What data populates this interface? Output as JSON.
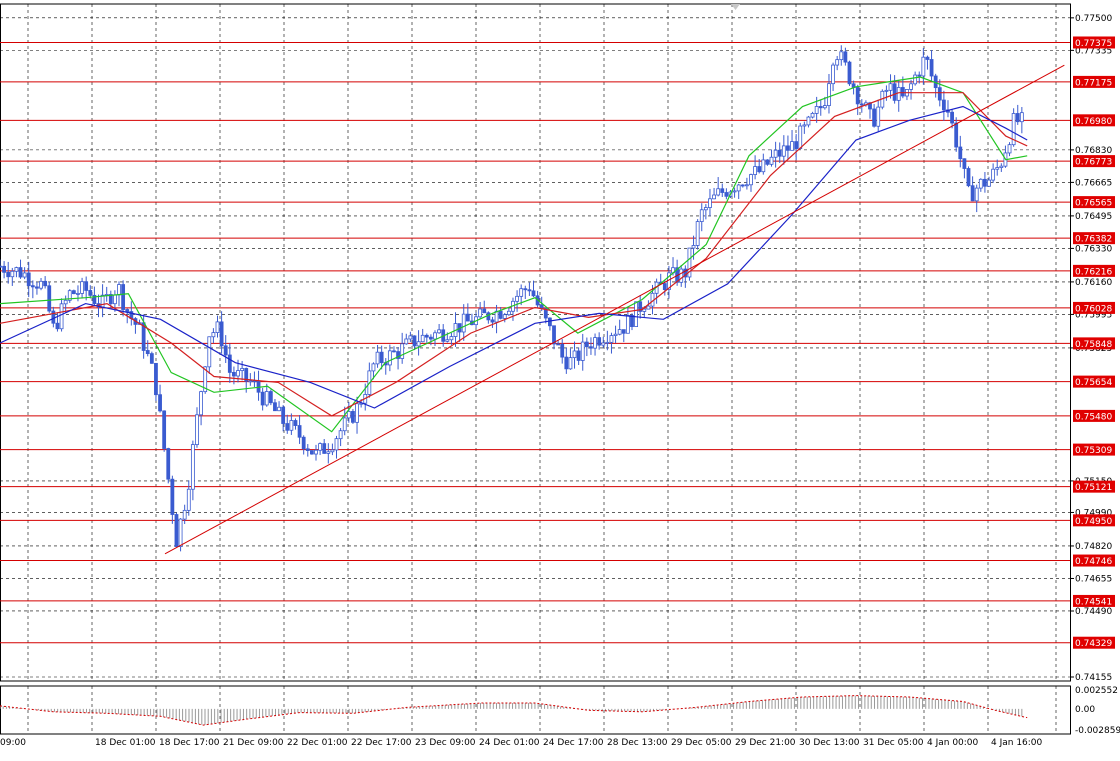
{
  "colors": {
    "background": "#ffffff",
    "frame": "#000000",
    "grid": "#000000",
    "candle": "#3a5bd0",
    "level_line": "#d40000",
    "level_label_bg": "#e00000",
    "level_label_text": "#ffffff",
    "ma_fast": "#22c522",
    "ma_mid": "#d42020",
    "ma_slow": "#1a22c8",
    "trend_line": "#d40000",
    "osc_histogram": "#9a9a9a",
    "osc_signal": "#d40000"
  },
  "chart_data": [
    {
      "type": "candlestick",
      "title": "",
      "price_range": [
        0.74155,
        0.7755
      ],
      "y_axis_ticks": [
        "0.77500",
        "0.77335",
        "0.76830",
        "0.76665",
        "0.76495",
        "0.76330",
        "0.76160",
        "0.75995",
        "0.75825",
        "0.75150",
        "0.74990",
        "0.74820",
        "0.74655",
        "0.74490",
        "0.74155"
      ],
      "x_axis_labels": [
        "09:00",
        "18 Dec 01:00",
        "18 Dec 17:00",
        "21 Dec 09:00",
        "22 Dec 01:00",
        "22 Dec 17:00",
        "23 Dec 09:00",
        "24 Dec 01:00",
        "24 Dec 17:00",
        "28 Dec 13:00",
        "29 Dec 05:00",
        "29 Dec 21:00",
        "30 Dec 13:00",
        "31 Dec 05:00",
        "4 Jan 00:00",
        "4 Jan 16:00"
      ],
      "levels": [
        "0.77375",
        "0.77175",
        "0.76980",
        "0.76773",
        "0.76565",
        "0.76382",
        "0.76216",
        "0.76028",
        "0.75848",
        "0.75654",
        "0.75480",
        "0.75309",
        "0.75121",
        "0.74950",
        "0.74746",
        "0.74541",
        "0.74329"
      ],
      "trend_line": [
        [
          0,
          0.7478
        ],
        [
          0.948,
          0.7726
        ]
      ],
      "close_path": [
        [
          0,
          0.7624
        ],
        [
          0.02,
          0.7621
        ],
        [
          0.04,
          0.7614
        ],
        [
          0.05,
          0.7592
        ],
        [
          0.065,
          0.761
        ],
        [
          0.08,
          0.7612
        ],
        [
          0.095,
          0.7604
        ],
        [
          0.11,
          0.7614
        ],
        [
          0.12,
          0.76
        ],
        [
          0.13,
          0.7592
        ],
        [
          0.145,
          0.7566
        ],
        [
          0.155,
          0.7525
        ],
        [
          0.165,
          0.7485
        ],
        [
          0.175,
          0.751
        ],
        [
          0.185,
          0.755
        ],
        [
          0.195,
          0.759
        ],
        [
          0.205,
          0.7592
        ],
        [
          0.215,
          0.757
        ],
        [
          0.235,
          0.7565
        ],
        [
          0.25,
          0.7555
        ],
        [
          0.265,
          0.7545
        ],
        [
          0.28,
          0.7538
        ],
        [
          0.295,
          0.7528
        ],
        [
          0.31,
          0.7535
        ],
        [
          0.325,
          0.7545
        ],
        [
          0.335,
          0.7553
        ],
        [
          0.35,
          0.7575
        ],
        [
          0.37,
          0.758
        ],
        [
          0.39,
          0.7587
        ],
        [
          0.41,
          0.759
        ],
        [
          0.43,
          0.7594
        ],
        [
          0.45,
          0.7598
        ],
        [
          0.47,
          0.7602
        ],
        [
          0.485,
          0.761
        ],
        [
          0.495,
          0.7614
        ],
        [
          0.505,
          0.7601
        ],
        [
          0.515,
          0.759
        ],
        [
          0.525,
          0.7578
        ],
        [
          0.535,
          0.7575
        ],
        [
          0.55,
          0.7585
        ],
        [
          0.57,
          0.7591
        ],
        [
          0.585,
          0.7594
        ],
        [
          0.6,
          0.7605
        ],
        [
          0.615,
          0.7612
        ],
        [
          0.625,
          0.7618
        ],
        [
          0.64,
          0.762
        ],
        [
          0.655,
          0.765
        ],
        [
          0.67,
          0.766
        ],
        [
          0.685,
          0.7665
        ],
        [
          0.7,
          0.767
        ],
        [
          0.71,
          0.7672
        ],
        [
          0.725,
          0.768
        ],
        [
          0.74,
          0.7685
        ],
        [
          0.755,
          0.7695
        ],
        [
          0.77,
          0.7707
        ],
        [
          0.78,
          0.7735
        ],
        [
          0.79,
          0.7725
        ],
        [
          0.8,
          0.7713
        ],
        [
          0.815,
          0.7697
        ],
        [
          0.83,
          0.7715
        ],
        [
          0.845,
          0.7708
        ],
        [
          0.855,
          0.772
        ],
        [
          0.865,
          0.773
        ],
        [
          0.875,
          0.7713
        ],
        [
          0.885,
          0.7705
        ],
        [
          0.895,
          0.7685
        ],
        [
          0.905,
          0.766
        ],
        [
          0.915,
          0.7665
        ],
        [
          0.925,
          0.7668
        ],
        [
          0.935,
          0.7676
        ],
        [
          0.948,
          0.7698
        ],
        [
          0.955,
          0.7697
        ]
      ],
      "moving_averages": {
        "fast": [
          [
            0,
            0.7605
          ],
          [
            0.08,
            0.7608
          ],
          [
            0.12,
            0.761
          ],
          [
            0.16,
            0.757
          ],
          [
            0.2,
            0.756
          ],
          [
            0.25,
            0.7563
          ],
          [
            0.31,
            0.754
          ],
          [
            0.36,
            0.7575
          ],
          [
            0.4,
            0.7585
          ],
          [
            0.46,
            0.76
          ],
          [
            0.5,
            0.7608
          ],
          [
            0.54,
            0.759
          ],
          [
            0.6,
            0.7607
          ],
          [
            0.66,
            0.7635
          ],
          [
            0.7,
            0.768
          ],
          [
            0.75,
            0.7705
          ],
          [
            0.8,
            0.7715
          ],
          [
            0.86,
            0.772
          ],
          [
            0.9,
            0.7712
          ],
          [
            0.94,
            0.7678
          ],
          [
            0.96,
            0.768
          ]
        ],
        "mid": [
          [
            0,
            0.7595
          ],
          [
            0.1,
            0.7605
          ],
          [
            0.16,
            0.7585
          ],
          [
            0.2,
            0.7568
          ],
          [
            0.26,
            0.7565
          ],
          [
            0.31,
            0.7548
          ],
          [
            0.37,
            0.7565
          ],
          [
            0.44,
            0.759
          ],
          [
            0.5,
            0.7603
          ],
          [
            0.55,
            0.7598
          ],
          [
            0.6,
            0.7602
          ],
          [
            0.66,
            0.7628
          ],
          [
            0.72,
            0.767
          ],
          [
            0.78,
            0.77
          ],
          [
            0.84,
            0.7712
          ],
          [
            0.9,
            0.7712
          ],
          [
            0.94,
            0.769
          ],
          [
            0.96,
            0.7685
          ]
        ],
        "slow": [
          [
            0,
            0.7585
          ],
          [
            0.08,
            0.7605
          ],
          [
            0.15,
            0.7597
          ],
          [
            0.22,
            0.7575
          ],
          [
            0.29,
            0.7565
          ],
          [
            0.35,
            0.7552
          ],
          [
            0.42,
            0.7573
          ],
          [
            0.5,
            0.7595
          ],
          [
            0.56,
            0.76
          ],
          [
            0.62,
            0.7597
          ],
          [
            0.68,
            0.7615
          ],
          [
            0.74,
            0.765
          ],
          [
            0.8,
            0.7688
          ],
          [
            0.85,
            0.7698
          ],
          [
            0.9,
            0.7705
          ],
          [
            0.94,
            0.7694
          ],
          [
            0.96,
            0.7688
          ]
        ]
      }
    },
    {
      "type": "histogram",
      "title": "",
      "y_axis_ticks": [
        "0.002552",
        "0.00",
        "-0.002859"
      ],
      "y_range": [
        -0.002859,
        0.002552
      ],
      "histogram_signal": [
        [
          0,
          0.0004
        ],
        [
          0.05,
          -0.0004
        ],
        [
          0.1,
          -0.0006
        ],
        [
          0.15,
          -0.001
        ],
        [
          0.19,
          -0.0022
        ],
        [
          0.23,
          -0.0014
        ],
        [
          0.28,
          -0.0005
        ],
        [
          0.33,
          -0.0006
        ],
        [
          0.38,
          0.0002
        ],
        [
          0.45,
          0.0008
        ],
        [
          0.5,
          0.0008
        ],
        [
          0.55,
          -0.0002
        ],
        [
          0.6,
          -0.0004
        ],
        [
          0.65,
          0.0002
        ],
        [
          0.7,
          0.001
        ],
        [
          0.75,
          0.0016
        ],
        [
          0.8,
          0.0018
        ],
        [
          0.85,
          0.0016
        ],
        [
          0.9,
          0.001
        ],
        [
          0.93,
          -0.0002
        ],
        [
          0.96,
          -0.0012
        ]
      ]
    }
  ]
}
